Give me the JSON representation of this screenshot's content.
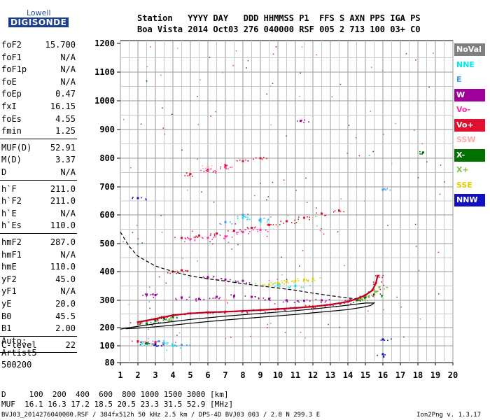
{
  "logo": {
    "top": "Lowell",
    "bottom": "DIGISONDE"
  },
  "header": {
    "line1": "Station   YYYY DAY   DDD HHMMSS P1  FFS S AXN PPS IGA PS",
    "line2": "Boa Vista 2014 Oct03 276 040000 RSF 005 2 713 100 03+ C0"
  },
  "params": {
    "group1": [
      {
        "name": "foF2",
        "value": "15.700"
      },
      {
        "name": "foF1",
        "value": "N/A"
      },
      {
        "name": "foF1p",
        "value": "N/A"
      },
      {
        "name": "foE",
        "value": "N/A"
      },
      {
        "name": "foEp",
        "value": "0.47"
      },
      {
        "name": "fxI",
        "value": "16.15"
      },
      {
        "name": "foEs",
        "value": "4.55"
      },
      {
        "name": "fmin",
        "value": "1.25"
      }
    ],
    "group2": [
      {
        "name": "MUF(D)",
        "value": "52.91"
      },
      {
        "name": "M(D)",
        "value": "3.37"
      },
      {
        "name": "D",
        "value": "N/A"
      }
    ],
    "group3": [
      {
        "name": "h`F",
        "value": "211.0"
      },
      {
        "name": "h`F2",
        "value": "211.0"
      },
      {
        "name": "h`E",
        "value": "N/A"
      },
      {
        "name": "h`Es",
        "value": "110.0"
      }
    ],
    "group4": [
      {
        "name": "hmF2",
        "value": "287.0"
      },
      {
        "name": "hmF1",
        "value": "N/A"
      },
      {
        "name": "hmE",
        "value": "110.0"
      },
      {
        "name": "yF2",
        "value": "45.0"
      },
      {
        "name": "yF1",
        "value": "N/A"
      },
      {
        "name": "yE",
        "value": "20.0"
      },
      {
        "name": "B0",
        "value": "45.5"
      },
      {
        "name": "B1",
        "value": "2.00"
      }
    ],
    "group5": [
      {
        "name": "C-level",
        "value": "22"
      }
    ]
  },
  "auto": {
    "l1": "Auto:",
    "l2": "Artist5",
    "l3": "500200"
  },
  "legend": [
    {
      "label": "NoVal",
      "bg": "#7f7f7f",
      "fg": "#ffffff"
    },
    {
      "label": "NNE",
      "bg": "#ffffff",
      "fg": "#00e5ee"
    },
    {
      "label": "E",
      "bg": "#ffffff",
      "fg": "#3a9cff"
    },
    {
      "label": "W",
      "bg": "#a0009a",
      "fg": "#ffffff"
    },
    {
      "label": "Vo-",
      "bg": "#ffffff",
      "fg": "#ff2aa0"
    },
    {
      "label": "Vo+",
      "bg": "#e01030",
      "fg": "#ffffff"
    },
    {
      "label": "SSW",
      "bg": "#ffffff",
      "fg": "#ffaaaa"
    },
    {
      "label": "X-",
      "bg": "#007000",
      "fg": "#ffffff"
    },
    {
      "label": "X+",
      "bg": "#ffffff",
      "fg": "#80c040"
    },
    {
      "label": "SSE",
      "bg": "#ffffff",
      "fg": "#e0d000"
    },
    {
      "label": "NNW",
      "bg": "#1010c0",
      "fg": "#ffffff"
    }
  ],
  "bottom": {
    "d_row": "D     100  200  400  600  800 1000 1500 3000 [km]",
    "muf_row": "MUF  16.1 16.3 17.2 18.5 20.5 23.3 31.5 52.9 [MHz]",
    "footer": "BVJ03_2014276040000.RSF / 384fx512h 50 kHz 2.5 km / DPS-4D BVJ03 003 / 2.8 N 299.3 E",
    "version": "Ion2Png v. 1.3.17"
  },
  "chart_data": {
    "type": "scatter",
    "xlabel": "",
    "ylabel": "",
    "xlim": [
      1,
      20
    ],
    "ylim": [
      80,
      1200
    ],
    "xticks": [
      1,
      2,
      3,
      4,
      5,
      6,
      7,
      8,
      9,
      10,
      11,
      12,
      13,
      14,
      15,
      16,
      17,
      18,
      19,
      20
    ],
    "yticks": [
      80,
      100,
      200,
      300,
      400,
      500,
      600,
      700,
      800,
      900,
      1000,
      1100,
      1200
    ],
    "grid": true,
    "series": [
      {
        "name": "Vo+",
        "color": "#e01030",
        "points": [
          [
            2.0,
            220
          ],
          [
            2.5,
            225
          ],
          [
            3.0,
            232
          ],
          [
            3.5,
            238
          ],
          [
            4.0,
            245
          ],
          [
            5.0,
            252
          ],
          [
            6.0,
            256
          ],
          [
            7.0,
            258
          ],
          [
            8.0,
            261
          ],
          [
            9.0,
            264
          ],
          [
            10.0,
            268
          ],
          [
            11.0,
            272
          ],
          [
            12.0,
            277
          ],
          [
            13.0,
            284
          ],
          [
            14.0,
            295
          ],
          [
            14.5,
            305
          ],
          [
            15.0,
            318
          ],
          [
            15.4,
            335
          ],
          [
            15.6,
            360
          ],
          [
            15.7,
            385
          ],
          [
            4.5,
            520
          ],
          [
            5.5,
            528
          ],
          [
            6.5,
            535
          ],
          [
            7.5,
            545
          ],
          [
            8.5,
            555
          ],
          [
            9.5,
            565
          ],
          [
            10.5,
            578
          ],
          [
            11.5,
            590
          ],
          [
            12.5,
            605
          ],
          [
            13.5,
            615
          ],
          [
            5.0,
            745
          ],
          [
            6.0,
            760
          ],
          [
            7.0,
            775
          ],
          [
            8.0,
            790
          ],
          [
            9.0,
            800
          ],
          [
            4.0,
            400
          ],
          [
            4.5,
            405
          ],
          [
            2.0,
            125
          ],
          [
            3.0,
            120
          ]
        ]
      },
      {
        "name": "W",
        "color": "#a0009a",
        "points": [
          [
            4.5,
            310
          ],
          [
            5.5,
            305
          ],
          [
            6.5,
            312
          ],
          [
            7.5,
            315
          ],
          [
            8.5,
            312
          ],
          [
            9.5,
            305
          ],
          [
            10.5,
            300
          ],
          [
            11.5,
            298
          ],
          [
            12.5,
            300
          ],
          [
            2.5,
            320
          ],
          [
            3.0,
            318
          ],
          [
            6.0,
            380
          ],
          [
            7.0,
            372
          ],
          [
            8.0,
            368
          ],
          [
            11.3,
            930
          ],
          [
            3.0,
            110
          ]
        ]
      },
      {
        "name": "Vo-",
        "color": "#ff2aa0",
        "points": [
          [
            5.0,
            515
          ],
          [
            6.0,
            520
          ],
          [
            7.0,
            525
          ],
          [
            8.0,
            540
          ],
          [
            9.0,
            548
          ],
          [
            6.0,
            755
          ],
          [
            7.0,
            768
          ]
        ]
      },
      {
        "name": "NNE",
        "color": "#00e5ee",
        "points": [
          [
            8.0,
            590
          ],
          [
            9.0,
            580
          ],
          [
            10.0,
            355
          ],
          [
            11.0,
            350
          ],
          [
            2.5,
            110
          ],
          [
            3.5,
            115
          ],
          [
            4.0,
            100
          ]
        ]
      },
      {
        "name": "E",
        "color": "#3a9cff",
        "points": [
          [
            7.0,
            575
          ],
          [
            8.0,
            600
          ],
          [
            9.0,
            585
          ],
          [
            2.2,
            120
          ],
          [
            3.2,
            125
          ],
          [
            4.5,
            105
          ],
          [
            16.0,
            690
          ]
        ]
      },
      {
        "name": "SSE",
        "color": "#e0d000",
        "points": [
          [
            9.5,
            355
          ],
          [
            10.0,
            360
          ],
          [
            10.5,
            365
          ],
          [
            11.0,
            368
          ],
          [
            11.5,
            372
          ],
          [
            12.0,
            375
          ]
        ]
      },
      {
        "name": "X-",
        "color": "#007000",
        "points": [
          [
            2.5,
            215
          ],
          [
            3.0,
            225
          ],
          [
            3.5,
            235
          ],
          [
            4.0,
            240
          ],
          [
            14.5,
            300
          ],
          [
            15.0,
            310
          ],
          [
            15.5,
            320
          ],
          [
            2.5,
            115
          ],
          [
            18.3,
            820
          ]
        ]
      },
      {
        "name": "X+",
        "color": "#80c040",
        "points": [
          [
            14.8,
            305
          ],
          [
            15.2,
            315
          ],
          [
            15.6,
            330
          ],
          [
            15.8,
            345
          ],
          [
            3.8,
            230
          ]
        ]
      },
      {
        "name": "NNW",
        "color": "#1010c0",
        "points": [
          [
            16.0,
            135
          ],
          [
            16.0,
            90
          ],
          [
            2.0,
            660
          ],
          [
            3.0,
            105
          ]
        ]
      },
      {
        "name": "SSW",
        "color": "#ffaaaa",
        "points": [
          [
            6.0,
            770
          ],
          [
            7.0,
            300
          ]
        ]
      }
    ],
    "curves": [
      {
        "name": "profile",
        "style": "solid",
        "points": [
          [
            1.0,
            192
          ],
          [
            2.0,
            205
          ],
          [
            3.0,
            214
          ],
          [
            4.0,
            222
          ],
          [
            5.0,
            230
          ],
          [
            6.0,
            236
          ],
          [
            7.0,
            242
          ],
          [
            8.0,
            247
          ],
          [
            9.0,
            252
          ],
          [
            10.0,
            257
          ],
          [
            11.0,
            262
          ],
          [
            12.0,
            268
          ],
          [
            13.0,
            275
          ],
          [
            14.0,
            282
          ],
          [
            15.0,
            290
          ],
          [
            15.5,
            290
          ],
          [
            15.3,
            281
          ],
          [
            14.8,
            274
          ],
          [
            14.0,
            266
          ],
          [
            13.0,
            260
          ],
          [
            12.0,
            254
          ],
          [
            11.0,
            248
          ],
          [
            10.0,
            243
          ],
          [
            9.0,
            238
          ],
          [
            8.0,
            233
          ],
          [
            7.0,
            228
          ],
          [
            6.0,
            222
          ],
          [
            5.0,
            216
          ],
          [
            4.0,
            209
          ],
          [
            3.0,
            203
          ],
          [
            2.0,
            197
          ],
          [
            1.3,
            194
          ]
        ]
      },
      {
        "name": "muf-curve",
        "style": "dashed",
        "points": [
          [
            1.0,
            540
          ],
          [
            1.5,
            490
          ],
          [
            2.0,
            455
          ],
          [
            3.0,
            420
          ],
          [
            4.0,
            400
          ],
          [
            5.0,
            385
          ],
          [
            6.0,
            375
          ],
          [
            7.0,
            367
          ],
          [
            8.0,
            358
          ],
          [
            9.0,
            350
          ],
          [
            10.0,
            343
          ],
          [
            11.0,
            335
          ],
          [
            12.0,
            325
          ],
          [
            13.0,
            316
          ],
          [
            14.0,
            308
          ],
          [
            14.5,
            305
          ]
        ]
      },
      {
        "name": "trace-red",
        "style": "trace",
        "points": [
          [
            2.0,
            220
          ],
          [
            3.0,
            232
          ],
          [
            4.0,
            245
          ],
          [
            5.0,
            252
          ],
          [
            6.0,
            256
          ],
          [
            7.0,
            258
          ],
          [
            8.0,
            261
          ],
          [
            9.0,
            264
          ],
          [
            10.0,
            268
          ],
          [
            11.0,
            272
          ],
          [
            12.0,
            277
          ],
          [
            13.0,
            284
          ],
          [
            14.0,
            295
          ],
          [
            14.5,
            305
          ],
          [
            15.0,
            318
          ],
          [
            15.4,
            335
          ],
          [
            15.6,
            360
          ],
          [
            15.7,
            385
          ]
        ]
      }
    ]
  }
}
